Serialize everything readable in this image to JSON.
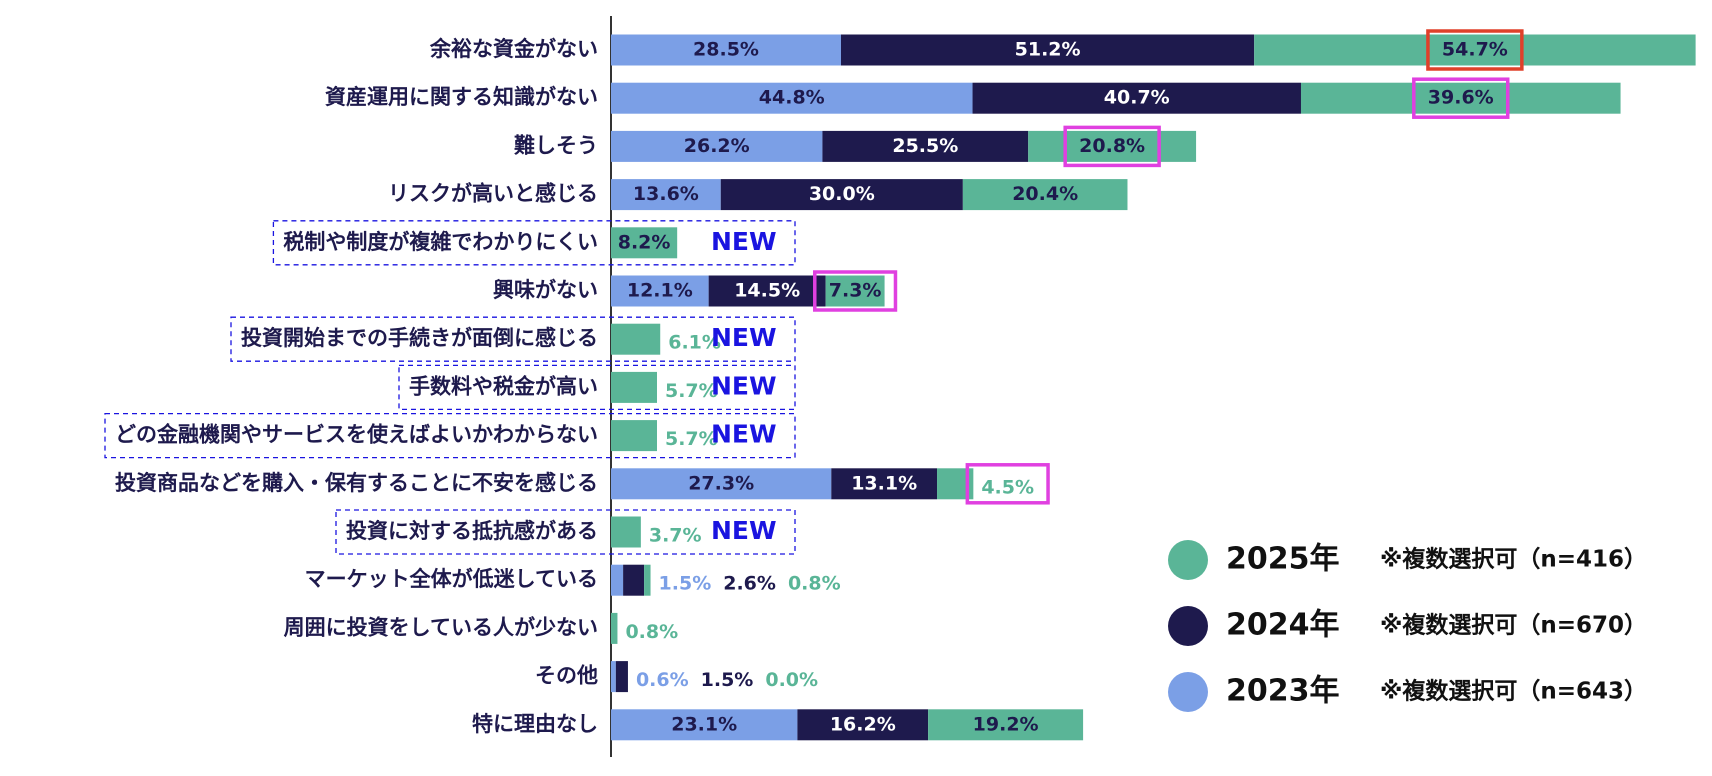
{
  "chart_data": {
    "type": "stacked-bar-horizontal",
    "categories": [
      "余裕な資金がない",
      "資産運用に関する知識がない",
      "難しそう",
      "リスクが高いと感じる",
      "税制や制度が複雑でわかりにくい",
      "興味がない",
      "投資開始までの手続きが面倒に感じる",
      "手数料や税金が高い",
      "どの金融機関やサービスを使えばよいかわからない",
      "投資商品などを購入・保有することに不安を感じる",
      "投資に対する抵抗感がある",
      "マーケット全体が低迷している",
      "周囲に投資をしている人が少ない",
      "その他",
      "特に理由なし"
    ],
    "new_labels": [
      null,
      null,
      null,
      null,
      "NEW",
      null,
      "NEW",
      "NEW",
      "NEW",
      null,
      "NEW",
      null,
      null,
      null,
      null
    ],
    "highlight_colors": [
      "#e0402a",
      "#e040e0",
      "#e040e0",
      null,
      null,
      "#e040e0",
      null,
      null,
      null,
      "#e040e0",
      null,
      null,
      null,
      null,
      null
    ],
    "series": [
      {
        "name": "2023年",
        "note": "※複数選択可（n=643）",
        "color": "#7b9fe6",
        "values": [
          28.5,
          44.8,
          26.2,
          13.6,
          null,
          12.1,
          null,
          null,
          null,
          27.3,
          null,
          1.5,
          null,
          0.6,
          23.1
        ],
        "value_labels": [
          "28.5%",
          "44.8%",
          "26.2%",
          "13.6%",
          null,
          "12.1%",
          null,
          null,
          null,
          "27.3%",
          null,
          "1.5%",
          null,
          "0.6%",
          "23.1%"
        ]
      },
      {
        "name": "2024年",
        "note": "※複数選択可（n=670）",
        "color": "#1e1a4d",
        "values": [
          51.2,
          40.7,
          25.5,
          30.0,
          null,
          14.5,
          null,
          null,
          null,
          13.1,
          null,
          2.6,
          null,
          1.5,
          16.2
        ],
        "value_labels": [
          "51.2%",
          "40.7%",
          "25.5%",
          "30.0%",
          null,
          "14.5%",
          null,
          null,
          null,
          "13.1%",
          null,
          "2.6%",
          null,
          "1.5%",
          "16.2%"
        ]
      },
      {
        "name": "2025年",
        "note": "※複数選択可（n=416）",
        "color": "#5ab597",
        "values": [
          54.7,
          39.6,
          20.8,
          20.4,
          8.2,
          7.3,
          6.1,
          5.7,
          5.7,
          4.5,
          3.7,
          0.8,
          0.8,
          0.0,
          19.2
        ],
        "value_labels": [
          "54.7%",
          "39.6%",
          "20.8%",
          "20.4%",
          "8.2%",
          "7.3%",
          "6.1%",
          "5.7%",
          "5.7%",
          "4.5%",
          "3.7%",
          "0.8%",
          "0.8%",
          "0.0%",
          "19.2%"
        ]
      }
    ]
  }
}
